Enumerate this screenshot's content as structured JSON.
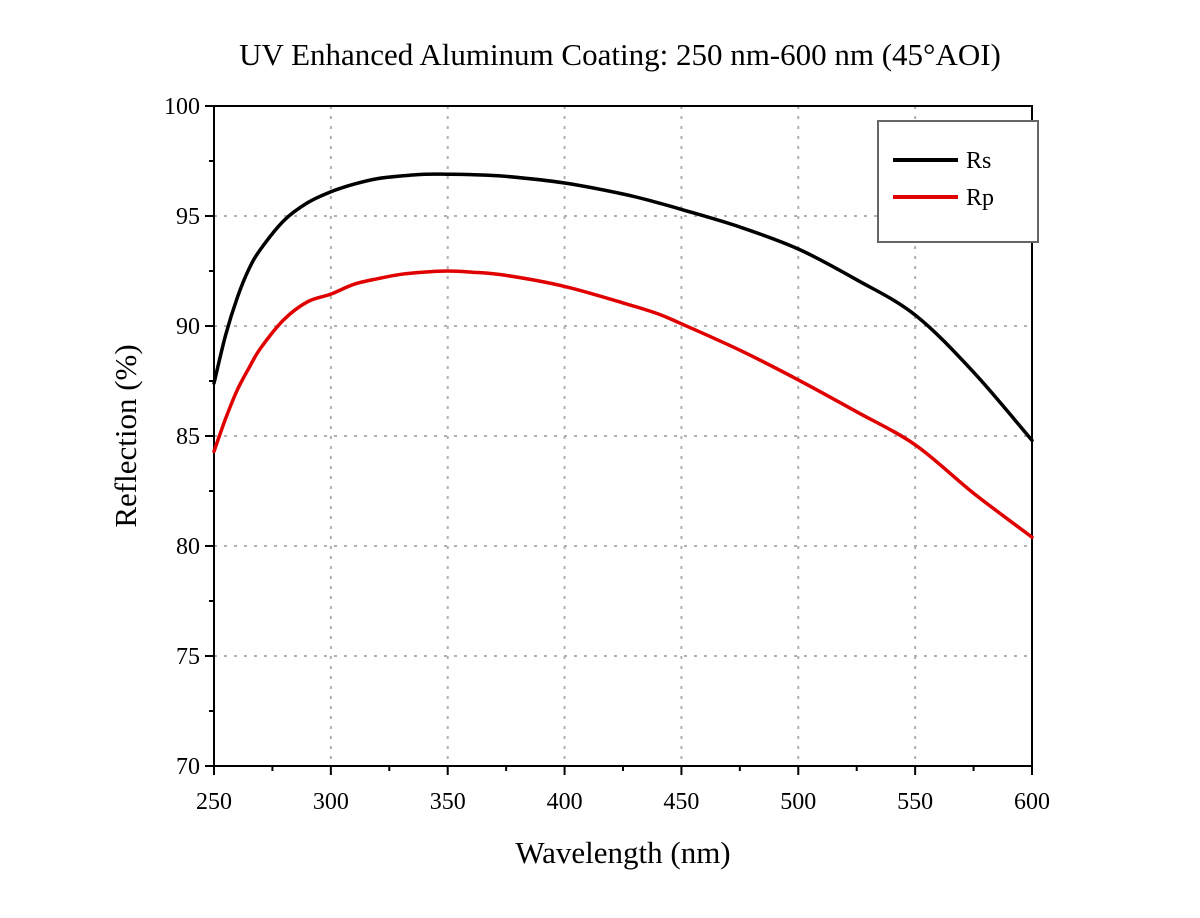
{
  "chart_data": {
    "type": "line",
    "title": "UV Enhanced Aluminum Coating: 250 nm-600 nm (45°AOI)",
    "xlabel": "Wavelength (nm)",
    "ylabel": "Reflection (%)",
    "xlim": [
      250,
      600
    ],
    "ylim": [
      70,
      100
    ],
    "xticks": [
      250,
      300,
      350,
      400,
      450,
      500,
      550,
      600
    ],
    "yticks": [
      70,
      75,
      80,
      85,
      90,
      95,
      100
    ],
    "grid": true,
    "legend_position": "top-right",
    "x": [
      250,
      255,
      260,
      265,
      270,
      280,
      290,
      300,
      310,
      320,
      330,
      340,
      350,
      360,
      375,
      400,
      425,
      440,
      450,
      475,
      500,
      525,
      550,
      575,
      600
    ],
    "series": [
      {
        "name": "Rs",
        "color": "#000000",
        "values": [
          87.4,
          89.6,
          91.3,
          92.6,
          93.5,
          94.8,
          95.6,
          96.1,
          96.45,
          96.7,
          96.82,
          96.9,
          96.9,
          96.88,
          96.8,
          96.5,
          96.0,
          95.6,
          95.3,
          94.5,
          93.5,
          92.1,
          90.5,
          87.9,
          84.8
        ]
      },
      {
        "name": "Rp",
        "color": "#e00000",
        "values": [
          84.3,
          85.8,
          87.1,
          88.1,
          89.0,
          90.3,
          91.1,
          91.45,
          91.9,
          92.15,
          92.35,
          92.45,
          92.5,
          92.45,
          92.3,
          91.8,
          91.05,
          90.55,
          90.1,
          88.9,
          87.55,
          86.1,
          84.6,
          82.4,
          80.4
        ]
      }
    ]
  }
}
